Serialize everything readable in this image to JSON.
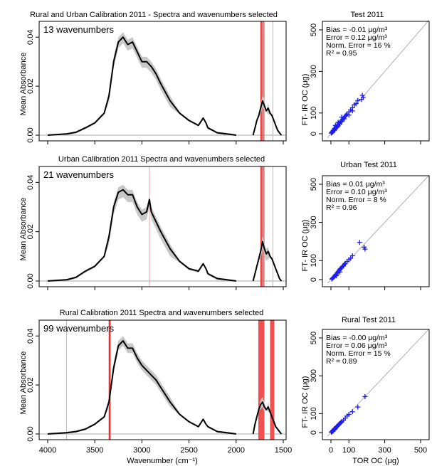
{
  "chart_data": [
    {
      "type": "line",
      "title": "Rural and Urban Calibration 2011 - Spectra and wavenumbers selected",
      "annotation": "13 wavenumbers",
      "ylabel": "Mean Absorbance",
      "xlabel": "",
      "xlim": [
        4000,
        1500
      ],
      "ylim": [
        0,
        0.045
      ],
      "yticks": [
        "0.00",
        "0.02",
        "0.04"
      ],
      "xticks": [],
      "x_axis_reversed": true,
      "series": [
        {
          "x": [
            4000,
            3800,
            3700,
            3600,
            3500,
            3400,
            3350,
            3300,
            3250,
            3200,
            3150,
            3100,
            3050,
            3000,
            2950,
            2900,
            2850,
            2800,
            2700,
            2600,
            2500,
            2400,
            2350,
            2320,
            2300,
            2250,
            2200,
            2100,
            2000
          ],
          "y": [
            0.0,
            0.0005,
            0.0012,
            0.003,
            0.005,
            0.009,
            0.016,
            0.03,
            0.038,
            0.04,
            0.037,
            0.038,
            0.034,
            0.03,
            0.03,
            0.028,
            0.025,
            0.021,
            0.014,
            0.009,
            0.006,
            0.004,
            0.007,
            0.005,
            0.003,
            0.002,
            0.001,
            0.0005,
            0.0
          ]
        },
        {
          "x": [
            1820,
            1800,
            1780,
            1760,
            1740,
            1720,
            1700,
            1680,
            1660,
            1640,
            1620,
            1600,
            1580,
            1560,
            1540,
            1520
          ],
          "y": [
            0.0,
            0.003,
            0.006,
            0.008,
            0.011,
            0.014,
            0.012,
            0.01,
            0.011,
            0.009,
            0.008,
            0.006,
            0.004,
            0.002,
            0.001,
            0.0
          ]
        }
      ],
      "band": [
        0.002,
        0.0025
      ],
      "selected_lines": [
        {
          "x": 1735,
          "strong": true
        },
        {
          "x": 1715,
          "strong": true
        },
        {
          "x": 1700,
          "strong": false
        },
        {
          "x": 1610,
          "strong": false
        }
      ]
    },
    {
      "type": "line",
      "title": "Urban Calibration 2011 Spectra and wavenumbers selected",
      "annotation": "21 wavenumbers",
      "ylabel": "Mean Absorbance",
      "xlabel": "",
      "xlim": [
        4000,
        1500
      ],
      "ylim": [
        0,
        0.045
      ],
      "yticks": [
        "0.00",
        "0.02",
        "0.04"
      ],
      "xticks": [],
      "x_axis_reversed": true,
      "series": [
        {
          "x": [
            4000,
            3800,
            3700,
            3600,
            3500,
            3400,
            3350,
            3300,
            3250,
            3200,
            3150,
            3100,
            3050,
            3000,
            2950,
            2920,
            2900,
            2850,
            2800,
            2700,
            2600,
            2500,
            2400,
            2350,
            2320,
            2300,
            2250,
            2200,
            2100,
            2000
          ],
          "y": [
            0.0,
            0.0005,
            0.0015,
            0.004,
            0.006,
            0.01,
            0.018,
            0.03,
            0.036,
            0.037,
            0.035,
            0.035,
            0.03,
            0.027,
            0.028,
            0.033,
            0.028,
            0.024,
            0.02,
            0.013,
            0.008,
            0.005,
            0.004,
            0.007,
            0.005,
            0.003,
            0.002,
            0.001,
            0.0005,
            0.0
          ]
        },
        {
          "x": [
            1820,
            1800,
            1780,
            1760,
            1740,
            1720,
            1700,
            1680,
            1660,
            1640,
            1620,
            1600,
            1580,
            1560,
            1540,
            1520
          ],
          "y": [
            0.0,
            0.003,
            0.006,
            0.009,
            0.012,
            0.016,
            0.013,
            0.011,
            0.012,
            0.01,
            0.009,
            0.007,
            0.005,
            0.003,
            0.001,
            0.0
          ]
        }
      ],
      "band": [
        0.002,
        0.003
      ],
      "selected_lines": [
        {
          "x": 2920,
          "strong": false
        },
        {
          "x": 1735,
          "strong": true
        },
        {
          "x": 1715,
          "strong": true
        },
        {
          "x": 1700,
          "strong": false
        },
        {
          "x": 1610,
          "strong": false
        }
      ]
    },
    {
      "type": "line",
      "title": "Rural Calibration 2011 Spectra and wavenumbers selected",
      "annotation": "99 wavenumbers",
      "ylabel": "Mean Absorbance",
      "xlabel": "Wavenumber (cm⁻¹)",
      "xlim": [
        4000,
        1500
      ],
      "ylim": [
        0,
        0.045
      ],
      "yticks": [
        "0.00",
        "0.02",
        "0.04"
      ],
      "xticks": [
        "4000",
        "3500",
        "3000",
        "2500",
        "2000",
        "1500"
      ],
      "x_axis_reversed": true,
      "series": [
        {
          "x": [
            4000,
            3800,
            3700,
            3600,
            3500,
            3400,
            3350,
            3300,
            3250,
            3200,
            3150,
            3100,
            3050,
            3000,
            2950,
            2900,
            2850,
            2800,
            2700,
            2600,
            2500,
            2400,
            2350,
            2320,
            2300,
            2250,
            2200,
            2100,
            2000
          ],
          "y": [
            0.0,
            0.0005,
            0.001,
            0.002,
            0.004,
            0.007,
            0.013,
            0.027,
            0.036,
            0.038,
            0.035,
            0.035,
            0.031,
            0.028,
            0.026,
            0.024,
            0.022,
            0.019,
            0.013,
            0.008,
            0.005,
            0.003,
            0.006,
            0.004,
            0.003,
            0.002,
            0.001,
            0.0005,
            0.0
          ]
        },
        {
          "x": [
            1820,
            1800,
            1780,
            1760,
            1740,
            1720,
            1700,
            1680,
            1660,
            1640,
            1620,
            1600,
            1580,
            1560,
            1540,
            1520
          ],
          "y": [
            0.0,
            0.004,
            0.007,
            0.01,
            0.012,
            0.013,
            0.011,
            0.01,
            0.011,
            0.009,
            0.007,
            0.005,
            0.003,
            0.002,
            0.001,
            0.0
          ]
        }
      ],
      "band": [
        0.002,
        0.002
      ],
      "selected_lines": [
        {
          "x": 3800,
          "strong": false
        },
        {
          "x": 3345,
          "strong": true
        },
        {
          "x": 3340,
          "strong": true
        }
      ],
      "selected_bands": [
        {
          "from": 1765,
          "to": 1700
        },
        {
          "from": 1640,
          "to": 1595
        }
      ]
    },
    {
      "type": "scatter",
      "title": "Test 2011",
      "ylabel": "FT- IR OC (μg)",
      "xlabel": "",
      "xlim": [
        -30,
        600
      ],
      "ylim": [
        -30,
        600
      ],
      "yticks": [
        "0",
        "100",
        "300",
        "500"
      ],
      "xticks": [],
      "stats": [
        "Bias = -0.01 μg/m³",
        "Error = 0.12 μg/m³",
        "Norm. Error = 16 %",
        "R² = 0.95"
      ],
      "points": [
        [
          2,
          3
        ],
        [
          5,
          6
        ],
        [
          8,
          10
        ],
        [
          10,
          8
        ],
        [
          12,
          15
        ],
        [
          15,
          18
        ],
        [
          18,
          15
        ],
        [
          20,
          25
        ],
        [
          22,
          20
        ],
        [
          25,
          28
        ],
        [
          28,
          30
        ],
        [
          30,
          35
        ],
        [
          35,
          32
        ],
        [
          38,
          42
        ],
        [
          40,
          38
        ],
        [
          45,
          50
        ],
        [
          48,
          45
        ],
        [
          50,
          55
        ],
        [
          55,
          60
        ],
        [
          60,
          58
        ],
        [
          65,
          70
        ],
        [
          70,
          75
        ],
        [
          75,
          72
        ],
        [
          80,
          85
        ],
        [
          85,
          90
        ],
        [
          90,
          95
        ],
        [
          100,
          105
        ],
        [
          110,
          115
        ],
        [
          120,
          125
        ],
        [
          130,
          140
        ],
        [
          140,
          145
        ],
        [
          150,
          160
        ],
        [
          170,
          165
        ],
        [
          175,
          185
        ],
        [
          180,
          175
        ],
        [
          60,
          80
        ],
        [
          40,
          55
        ],
        [
          25,
          40
        ],
        [
          100,
          90
        ],
        [
          120,
          110
        ]
      ]
    },
    {
      "type": "scatter",
      "title": "Urban Test 2011",
      "ylabel": "FT- IR OC (μg)",
      "xlabel": "",
      "xlim": [
        -30,
        600
      ],
      "ylim": [
        -30,
        600
      ],
      "yticks": [
        "0",
        "100",
        "300",
        "500"
      ],
      "xticks": [],
      "stats": [
        "Bias = 0.01 μg/m³",
        "Error = 0.10 μg/m³",
        "Norm. Error = 8 %",
        "R² = 0.96"
      ],
      "points": [
        [
          5,
          3
        ],
        [
          10,
          8
        ],
        [
          15,
          12
        ],
        [
          20,
          18
        ],
        [
          25,
          25
        ],
        [
          30,
          28
        ],
        [
          35,
          35
        ],
        [
          40,
          42
        ],
        [
          45,
          48
        ],
        [
          50,
          55
        ],
        [
          55,
          58
        ],
        [
          60,
          62
        ],
        [
          65,
          70
        ],
        [
          70,
          72
        ],
        [
          75,
          80
        ],
        [
          80,
          85
        ],
        [
          90,
          95
        ],
        [
          100,
          105
        ],
        [
          110,
          112
        ],
        [
          120,
          125
        ],
        [
          160,
          195
        ],
        [
          185,
          170
        ],
        [
          190,
          160
        ],
        [
          30,
          20
        ],
        [
          50,
          40
        ]
      ]
    },
    {
      "type": "scatter",
      "title": "Rural Test 2011",
      "ylabel": "FT- IR OC (μg)",
      "xlabel": "TOR OC (μg)",
      "xlim": [
        -30,
        600
      ],
      "ylim": [
        -30,
        600
      ],
      "yticks": [
        "0",
        "100",
        "300",
        "500"
      ],
      "xticks": [
        "0",
        "100",
        "300",
        "500"
      ],
      "stats": [
        "Bias = -0.00 μg/m³",
        "Error = 0.06 μg/m³",
        "Norm. Error = 15 %",
        "R² = 0.89"
      ],
      "points": [
        [
          2,
          2
        ],
        [
          5,
          4
        ],
        [
          8,
          6
        ],
        [
          10,
          10
        ],
        [
          12,
          8
        ],
        [
          15,
          14
        ],
        [
          18,
          16
        ],
        [
          20,
          20
        ],
        [
          22,
          18
        ],
        [
          25,
          24
        ],
        [
          28,
          26
        ],
        [
          30,
          30
        ],
        [
          35,
          32
        ],
        [
          40,
          38
        ],
        [
          45,
          44
        ],
        [
          50,
          48
        ],
        [
          55,
          52
        ],
        [
          60,
          58
        ],
        [
          70,
          66
        ],
        [
          80,
          76
        ],
        [
          90,
          88
        ],
        [
          100,
          96
        ],
        [
          120,
          110
        ],
        [
          150,
          135
        ],
        [
          190,
          190
        ]
      ]
    }
  ]
}
